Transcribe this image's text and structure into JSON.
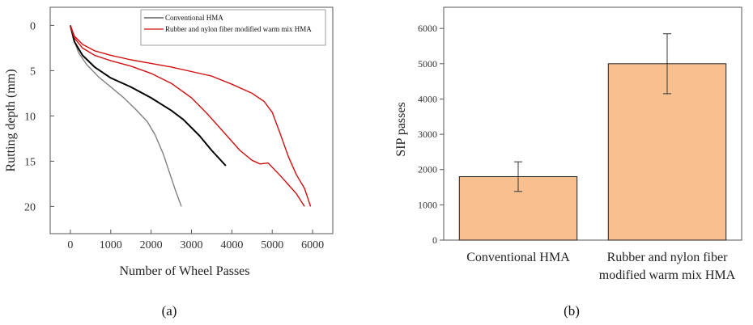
{
  "chart_data": [
    {
      "type": "line",
      "panel_label": "(a)",
      "xlabel": "Number of Wheel Passes",
      "ylabel": "Rutting depth (mm)",
      "xlim": [
        -500,
        6500
      ],
      "ylim": [
        -2,
        23
      ],
      "y_inverted": true,
      "xticks": [
        "0",
        "1000",
        "2000",
        "3000",
        "4000",
        "5000",
        "6000"
      ],
      "yticks": [
        "0",
        "5",
        "10",
        "15",
        "20"
      ],
      "grid": false,
      "legend_position": "top-right",
      "legend": [
        {
          "name": "Conventional HMA",
          "color": "#404040"
        },
        {
          "name": "Rubber and nylon fiber modified warm mix HMA",
          "color": "#d01010"
        }
      ],
      "series": [
        {
          "legend_index": 0,
          "color": "#808080",
          "x": [
            0,
            100,
            200,
            400,
            700,
            1000,
            1300,
            1600,
            1900,
            2100,
            2300,
            2450,
            2600,
            2750
          ],
          "y": [
            0,
            1.7,
            3.0,
            4.3,
            5.7,
            6.8,
            7.9,
            9.2,
            10.6,
            12.1,
            14.2,
            16.2,
            18.2,
            20.0
          ]
        },
        {
          "legend_index": 0,
          "color": "#000000",
          "x": [
            0,
            100,
            300,
            600,
            1000,
            1500,
            2000,
            2500,
            2800,
            3200,
            3500,
            3850
          ],
          "y": [
            0,
            1.8,
            3.3,
            4.6,
            5.8,
            6.8,
            8.0,
            9.4,
            10.4,
            12.2,
            13.8,
            15.5
          ]
        },
        {
          "legend_index": 1,
          "color": "#d01010",
          "x": [
            0,
            100,
            300,
            600,
            1000,
            1500,
            2000,
            2500,
            3000,
            3400,
            3800,
            4200,
            4500,
            4700,
            4900,
            5200,
            5400,
            5600,
            5800
          ],
          "y": [
            0,
            1.4,
            2.5,
            3.3,
            3.9,
            4.5,
            5.3,
            6.4,
            8.0,
            9.8,
            11.8,
            13.8,
            14.9,
            15.3,
            15.2,
            16.6,
            17.6,
            18.6,
            20.0
          ]
        },
        {
          "legend_index": 1,
          "color": "#d01010",
          "x": [
            0,
            100,
            300,
            600,
            1000,
            1500,
            2000,
            2500,
            3000,
            3500,
            4000,
            4500,
            4800,
            5000,
            5200,
            5400,
            5600,
            5800,
            5950
          ],
          "y": [
            0,
            1.2,
            2.1,
            2.8,
            3.3,
            3.8,
            4.2,
            4.6,
            5.1,
            5.6,
            6.5,
            7.5,
            8.4,
            9.6,
            12.0,
            14.5,
            16.5,
            18.0,
            20.0
          ]
        }
      ]
    },
    {
      "type": "bar",
      "panel_label": "(b)",
      "ylabel": "SIP passes",
      "xlabel": "",
      "categories": [
        "Conventional HMA",
        "Rubber and nylon fiber modified warm mix HMA"
      ],
      "category_label_lines": [
        [
          "Conventional HMA"
        ],
        [
          "Rubber and nylon fiber",
          "modified warm mix HMA"
        ]
      ],
      "values": [
        1800,
        5000
      ],
      "error_bars": [
        420,
        850
      ],
      "ylim": [
        0,
        6600
      ],
      "yticks": [
        "0",
        "1000",
        "2000",
        "3000",
        "4000",
        "5000",
        "6000"
      ],
      "bar_color": "#f9c08f",
      "grid": false
    }
  ]
}
